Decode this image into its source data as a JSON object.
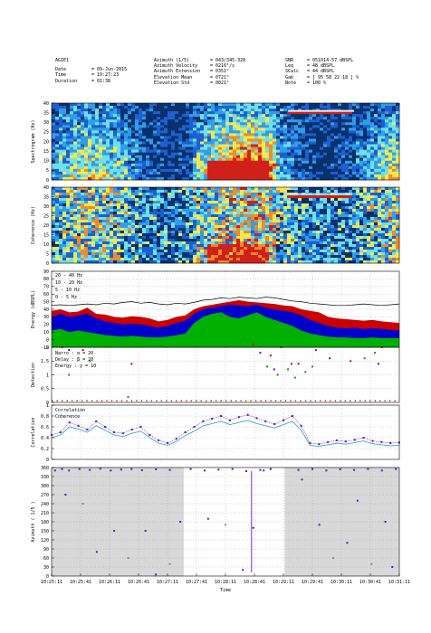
{
  "header": {
    "col1": {
      "title": "AGIE1",
      "rows": [
        {
          "k": "Date",
          "v": "= 09-Jun-2015"
        },
        {
          "k": "Time",
          "v": "= 10:27:23"
        },
        {
          "k": "Duration",
          "v": "= 01:38"
        }
      ]
    },
    "col2": {
      "rows": [
        {
          "k": "Azimuth (1/5)",
          "v": "= 043/345-328"
        },
        {
          "k": "Azimuth Velocity",
          "v": "= 0216°/s"
        },
        {
          "k": "Azimuth Extension",
          "v": "= 0351°"
        },
        {
          "k": "Elevation Mean",
          "v": "= 0721°"
        },
        {
          "k": "Elevation Std",
          "v": "= 0021°"
        }
      ]
    },
    "col3": {
      "rows": [
        {
          "k": "SNR",
          "v": "= 051014-57 dBSPL"
        },
        {
          "k": "Leq",
          "v": "= 48 dBSPL"
        },
        {
          "k": "SCalc",
          "v": "= 44 dBSPL"
        },
        {
          "k": "Gab",
          "v": "= [ 95 58 22 18 ] %"
        },
        {
          "k": "Note",
          "v": "= 100 %"
        }
      ]
    }
  },
  "chart_data": [
    {
      "type": "heatmap",
      "ylabel": "Spectrogram (Hz)",
      "ylim": [
        0,
        40
      ],
      "yticks": [
        "0",
        "5",
        "10",
        "15",
        "20",
        "25",
        "30",
        "35",
        "40"
      ],
      "colormap": [
        "#08306b",
        "#1c5fd0",
        "#2f9ee8",
        "#6fe0e8",
        "#f5e84a",
        "#f08a2a",
        "#d0201a"
      ]
    },
    {
      "type": "heatmap",
      "ylabel": "Coherence (Hz)",
      "ylim": [
        0,
        40
      ],
      "yticks": [
        "0",
        "5",
        "10",
        "15",
        "20",
        "25",
        "30",
        "35",
        "40"
      ]
    },
    {
      "type": "area",
      "ylabel": "Energy (dBSPL)",
      "ylim": [
        -10,
        90
      ],
      "yticks": [
        "-10",
        "0",
        "10",
        "20",
        "30",
        "40",
        "50",
        "60",
        "70",
        "80",
        "90"
      ],
      "legend_position": "top-left",
      "series": [
        {
          "name": "20 - 40 Hz",
          "color": "#000000",
          "values": [
            45,
            46,
            45,
            46,
            47,
            46,
            48,
            47,
            49,
            50,
            48,
            49,
            47,
            46,
            48,
            47,
            49,
            52,
            53,
            55,
            54,
            56,
            55,
            54,
            56,
            55,
            53,
            51,
            50,
            48,
            47,
            46,
            45,
            45,
            46,
            47,
            46,
            45,
            46,
            47
          ]
        },
        {
          "name": "10 - 20 Hz",
          "color": "#cc0000",
          "values": [
            38,
            40,
            36,
            37,
            42,
            34,
            33,
            30,
            29,
            31,
            30,
            28,
            24,
            26,
            30,
            32,
            40,
            44,
            46,
            48,
            50,
            52,
            50,
            49,
            48,
            47,
            45,
            44,
            40,
            38,
            36,
            30,
            28,
            27,
            26,
            25,
            26,
            24,
            23,
            22
          ]
        },
        {
          "name": "5 - 10 Hz",
          "color": "#0000cc",
          "values": [
            30,
            34,
            30,
            32,
            34,
            28,
            24,
            22,
            20,
            21,
            20,
            18,
            16,
            18,
            22,
            25,
            34,
            40,
            42,
            44,
            46,
            45,
            44,
            46,
            42,
            40,
            38,
            36,
            32,
            26,
            22,
            18,
            16,
            15,
            16,
            14,
            15,
            14,
            13,
            12
          ]
        },
        {
          "name": "0 - 5 Hz",
          "color": "#00b000",
          "values": [
            12,
            14,
            10,
            12,
            10,
            8,
            6,
            5,
            4,
            5,
            4,
            3,
            3,
            4,
            6,
            8,
            22,
            30,
            34,
            36,
            30,
            28,
            32,
            36,
            30,
            26,
            22,
            18,
            12,
            8,
            6,
            4,
            3,
            3,
            2,
            2,
            3,
            2,
            2,
            2
          ]
        }
      ]
    },
    {
      "type": "scatter",
      "ylabel": "Detection",
      "ylim": [
        0,
        2
      ],
      "yticks": [
        "0",
        "0.5",
        "1",
        "1.5",
        "2"
      ],
      "legend_position": "top-left",
      "series": [
        {
          "name": "Narro : α = 20",
          "color": "#009900",
          "points": [
            [
              0.05,
              1.0
            ],
            [
              0.11,
              1.5
            ],
            [
              0.22,
              0.2
            ],
            [
              0.62,
              1.3
            ],
            [
              0.65,
              1.0
            ],
            [
              0.68,
              1.2
            ],
            [
              0.7,
              0.9
            ],
            [
              0.73,
              1.1
            ],
            [
              0.75,
              1.3
            ],
            [
              0.9,
              1.6
            ],
            [
              0.93,
              1.8
            ]
          ]
        },
        {
          "name": "Delay : β = 20",
          "color": "#cc0000",
          "points": [
            [
              0.03,
              2.0
            ],
            [
              0.09,
              1.9
            ],
            [
              0.23,
              1.4
            ],
            [
              0.58,
              2.1
            ],
            [
              0.63,
              1.7
            ],
            [
              0.66,
              2.0
            ],
            [
              0.69,
              1.4
            ],
            [
              0.76,
              1.9
            ],
            [
              0.86,
              1.5
            ],
            [
              0.95,
              2.0
            ]
          ]
        },
        {
          "name": "Energy : γ = 10",
          "color": "#6600cc",
          "points": [
            [
              0.05,
              1.9
            ],
            [
              0.6,
              1.8
            ],
            [
              0.64,
              1.2
            ],
            [
              0.71,
              1.4
            ],
            [
              0.8,
              1.6
            ],
            [
              0.94,
              1.4
            ]
          ]
        }
      ]
    },
    {
      "type": "line",
      "ylabel": "Correlation",
      "ylim": [
        0,
        1
      ],
      "yticks": [
        "0",
        "0.2",
        "0.4",
        "0.6",
        "0.8",
        "1"
      ],
      "legend_position": "top-left",
      "series": [
        {
          "name": "Correlation",
          "color": "#6600cc",
          "values": [
            0.45,
            0.5,
            0.68,
            0.62,
            0.55,
            0.7,
            0.6,
            0.5,
            0.48,
            0.55,
            0.6,
            0.45,
            0.35,
            0.3,
            0.38,
            0.5,
            0.6,
            0.7,
            0.75,
            0.8,
            0.72,
            0.78,
            0.82,
            0.76,
            0.7,
            0.65,
            0.72,
            0.8,
            0.62,
            0.3,
            0.28,
            0.32,
            0.35,
            0.33,
            0.36,
            0.4,
            0.34,
            0.32,
            0.3,
            0.31
          ]
        },
        {
          "name": "Coherence",
          "color": "#33aacc",
          "values": [
            0.4,
            0.45,
            0.6,
            0.56,
            0.5,
            0.62,
            0.54,
            0.45,
            0.42,
            0.48,
            0.52,
            0.4,
            0.3,
            0.26,
            0.33,
            0.44,
            0.52,
            0.62,
            0.66,
            0.7,
            0.64,
            0.68,
            0.72,
            0.66,
            0.62,
            0.58,
            0.64,
            0.7,
            0.54,
            0.26,
            0.24,
            0.27,
            0.3,
            0.28,
            0.31,
            0.34,
            0.29,
            0.27,
            0.25,
            0.26
          ]
        }
      ]
    },
    {
      "type": "scatter",
      "ylabel": "Azimuth ( 1/5 )",
      "ylim": [
        0,
        360
      ],
      "yticks": [
        "0",
        "30",
        "60",
        "90",
        "120",
        "150",
        "180",
        "210",
        "240",
        "270",
        "300",
        "330",
        "360"
      ],
      "xlabel": "Time",
      "xticks": [
        "10:25:11",
        "10:25:41",
        "10:26:11",
        "10:26:41",
        "10:27:11",
        "10:27:41",
        "10:28:11",
        "10:28:41",
        "10:29:11",
        "10:29:41",
        "10:30:11",
        "10:30:41",
        "10:31:11"
      ],
      "shaded_regions": [
        [
          0.0,
          0.38
        ],
        [
          0.67,
          1.0
        ]
      ],
      "series": [
        {
          "name": "Azimuth",
          "color": "#4422cc",
          "points": [
            [
              0.01,
              350
            ],
            [
              0.03,
              355
            ],
            [
              0.05,
              350
            ],
            [
              0.08,
              355
            ],
            [
              0.11,
              352
            ],
            [
              0.14,
              356
            ],
            [
              0.17,
              350
            ],
            [
              0.2,
              353
            ],
            [
              0.23,
              355
            ],
            [
              0.26,
              351
            ],
            [
              0.3,
              354
            ],
            [
              0.34,
              352
            ],
            [
              0.4,
              355
            ],
            [
              0.44,
              350
            ],
            [
              0.48,
              353
            ],
            [
              0.52,
              355
            ],
            [
              0.56,
              348
            ],
            [
              0.6,
              352
            ],
            [
              0.63,
              355
            ],
            [
              0.71,
              352
            ],
            [
              0.75,
              355
            ],
            [
              0.79,
              350
            ],
            [
              0.83,
              354
            ],
            [
              0.87,
              352
            ],
            [
              0.91,
              355
            ],
            [
              0.95,
              350
            ],
            [
              0.99,
              355
            ],
            [
              0.04,
              270
            ],
            [
              0.09,
              240
            ],
            [
              0.13,
              80
            ],
            [
              0.18,
              150
            ],
            [
              0.22,
              60
            ],
            [
              0.27,
              150
            ],
            [
              0.3,
              5
            ],
            [
              0.34,
              40
            ],
            [
              0.37,
              180
            ],
            [
              0.45,
              190
            ],
            [
              0.5,
              170
            ],
            [
              0.55,
              20
            ],
            [
              0.58,
              160
            ],
            [
              0.61,
              350
            ],
            [
              0.72,
              320
            ],
            [
              0.77,
              170
            ],
            [
              0.81,
              60
            ],
            [
              0.85,
              110
            ],
            [
              0.88,
              250
            ],
            [
              0.92,
              40
            ],
            [
              0.96,
              180
            ],
            [
              0.98,
              30
            ]
          ]
        }
      ]
    }
  ]
}
